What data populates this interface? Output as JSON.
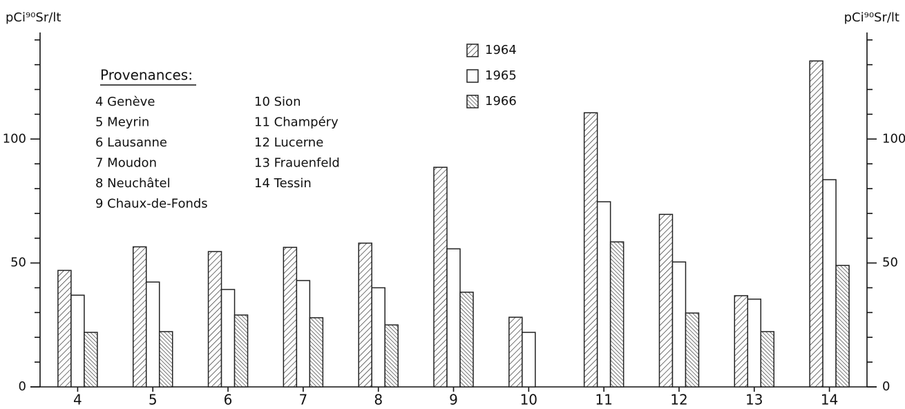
{
  "chart_data": {
    "type": "bar",
    "y_label": "pCi⁹⁰Sr/lt",
    "y2_label": "pCi⁹⁰Sr/lt",
    "categories": [
      "4",
      "5",
      "6",
      "7",
      "8",
      "9",
      "10",
      "11",
      "12",
      "13",
      "14"
    ],
    "series": [
      {
        "name": "1964",
        "color": "#222222",
        "hatch": "/",
        "values": [
          47,
          56.5,
          54.6,
          56.3,
          58,
          88.6,
          28.1,
          110.6,
          69.6,
          36.8,
          131.5
        ]
      },
      {
        "name": "1965",
        "color": "#222222",
        "hatch": "none",
        "values": [
          37,
          42.3,
          39.3,
          42.9,
          40,
          55.7,
          22,
          74.7,
          50.4,
          35.4,
          83.6
        ]
      },
      {
        "name": "1966",
        "color": "#222222",
        "hatch": "\\",
        "values": [
          22,
          22.3,
          29,
          27.9,
          25,
          38.2,
          null,
          58.5,
          29.8,
          22.3,
          49
        ]
      }
    ],
    "ylim": [
      0,
      143
    ],
    "yticks": [
      0,
      50,
      100
    ],
    "y2lim": [
      0,
      143
    ],
    "y2ticks": [
      0,
      50,
      100
    ],
    "yminorticks": [
      10,
      20,
      30,
      40,
      60,
      70,
      80,
      90,
      110,
      120,
      130,
      140
    ],
    "annotation": {
      "title": "Provenances:",
      "items": [
        "4 Genève",
        "5 Meyrin",
        "6 Lausanne",
        "7 Moudon",
        "8 Neuchâtel",
        "9 Chaux-de-Fonds",
        "10 Sion",
        "11 Champéry",
        "12 Lucerne",
        "13 Frauenfeld",
        "14 Tessin"
      ]
    }
  }
}
